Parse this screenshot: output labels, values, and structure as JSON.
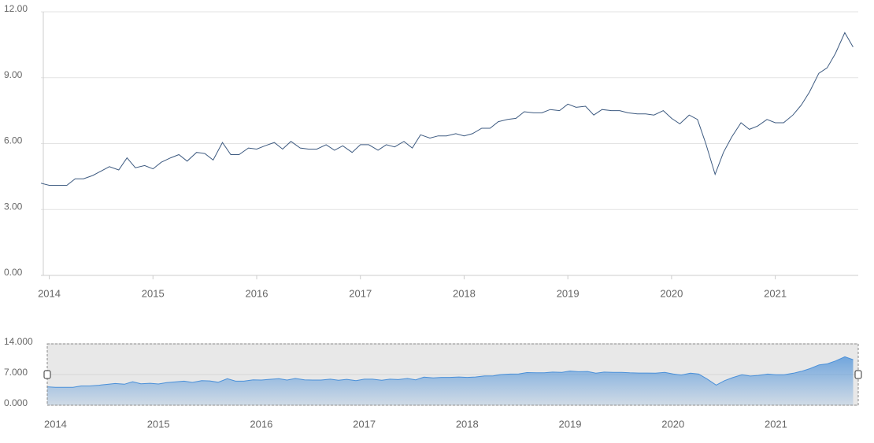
{
  "chart_data": {
    "type": "line",
    "x": [
      2013.92,
      2014,
      2014.08,
      2014.17,
      2014.25,
      2014.33,
      2014.42,
      2014.5,
      2014.58,
      2014.67,
      2014.75,
      2014.83,
      2014.92,
      2015,
      2015.08,
      2015.17,
      2015.25,
      2015.33,
      2015.42,
      2015.5,
      2015.58,
      2015.67,
      2015.75,
      2015.83,
      2015.92,
      2016,
      2016.08,
      2016.17,
      2016.25,
      2016.33,
      2016.42,
      2016.5,
      2016.58,
      2016.67,
      2016.75,
      2016.83,
      2016.92,
      2017,
      2017.08,
      2017.17,
      2017.25,
      2017.33,
      2017.42,
      2017.5,
      2017.58,
      2017.67,
      2017.75,
      2017.83,
      2017.92,
      2018,
      2018.08,
      2018.17,
      2018.25,
      2018.33,
      2018.42,
      2018.5,
      2018.58,
      2018.67,
      2018.75,
      2018.83,
      2018.92,
      2019,
      2019.08,
      2019.17,
      2019.25,
      2019.33,
      2019.42,
      2019.5,
      2019.58,
      2019.67,
      2019.75,
      2019.83,
      2019.92,
      2020,
      2020.08,
      2020.17,
      2020.25,
      2020.33,
      2020.42,
      2020.5,
      2020.58,
      2020.67,
      2020.75,
      2020.83,
      2020.92,
      2021,
      2021.08,
      2021.17,
      2021.25,
      2021.33,
      2021.42,
      2021.5,
      2021.58,
      2021.67,
      2021.75
    ],
    "series": [
      {
        "color": "#3d5a80",
        "values": [
          4.2,
          4.1,
          4.1,
          4.1,
          4.4,
          4.4,
          4.55,
          4.75,
          4.95,
          4.8,
          5.35,
          4.9,
          5.0,
          4.85,
          5.15,
          5.35,
          5.5,
          5.2,
          5.6,
          5.55,
          5.25,
          6.05,
          5.5,
          5.5,
          5.8,
          5.75,
          5.9,
          6.05,
          5.75,
          6.1,
          5.8,
          5.75,
          5.75,
          5.95,
          5.7,
          5.9,
          5.6,
          5.95,
          5.95,
          5.7,
          5.95,
          5.85,
          6.1,
          5.8,
          6.4,
          6.25,
          6.35,
          6.35,
          6.45,
          6.35,
          6.45,
          6.7,
          6.7,
          7.0,
          7.1,
          7.15,
          7.45,
          7.4,
          7.4,
          7.55,
          7.5,
          7.8,
          7.65,
          7.7,
          7.3,
          7.55,
          7.5,
          7.5,
          7.4,
          7.35,
          7.35,
          7.3,
          7.5,
          7.15,
          6.9,
          7.3,
          7.1,
          6.0,
          4.6,
          5.6,
          6.3,
          6.95,
          6.65,
          6.8,
          7.1,
          6.95,
          6.95,
          7.3,
          7.75,
          8.35,
          9.2,
          9.45,
          10.1,
          11.05,
          10.4
        ]
      }
    ],
    "xlim": [
      2013.92,
      2021.8
    ],
    "xticks": [
      2014,
      2015,
      2016,
      2017,
      2018,
      2019,
      2020,
      2021
    ],
    "ylim": [
      0,
      12
    ],
    "yticks": [
      {
        "value": 0,
        "label": "0.00"
      },
      {
        "value": 3,
        "label": "3.00"
      },
      {
        "value": 6,
        "label": "6.00"
      },
      {
        "value": 9,
        "label": "9.00"
      },
      {
        "value": 12,
        "label": "12.00"
      }
    ],
    "grid": true,
    "navigator": {
      "ylim": [
        0,
        14
      ],
      "yticks": [
        {
          "value": 0,
          "label": "0.000"
        },
        {
          "value": 7,
          "label": "7.000"
        },
        {
          "value": 14,
          "label": "14.000"
        }
      ],
      "color": "#4a90d9"
    }
  }
}
